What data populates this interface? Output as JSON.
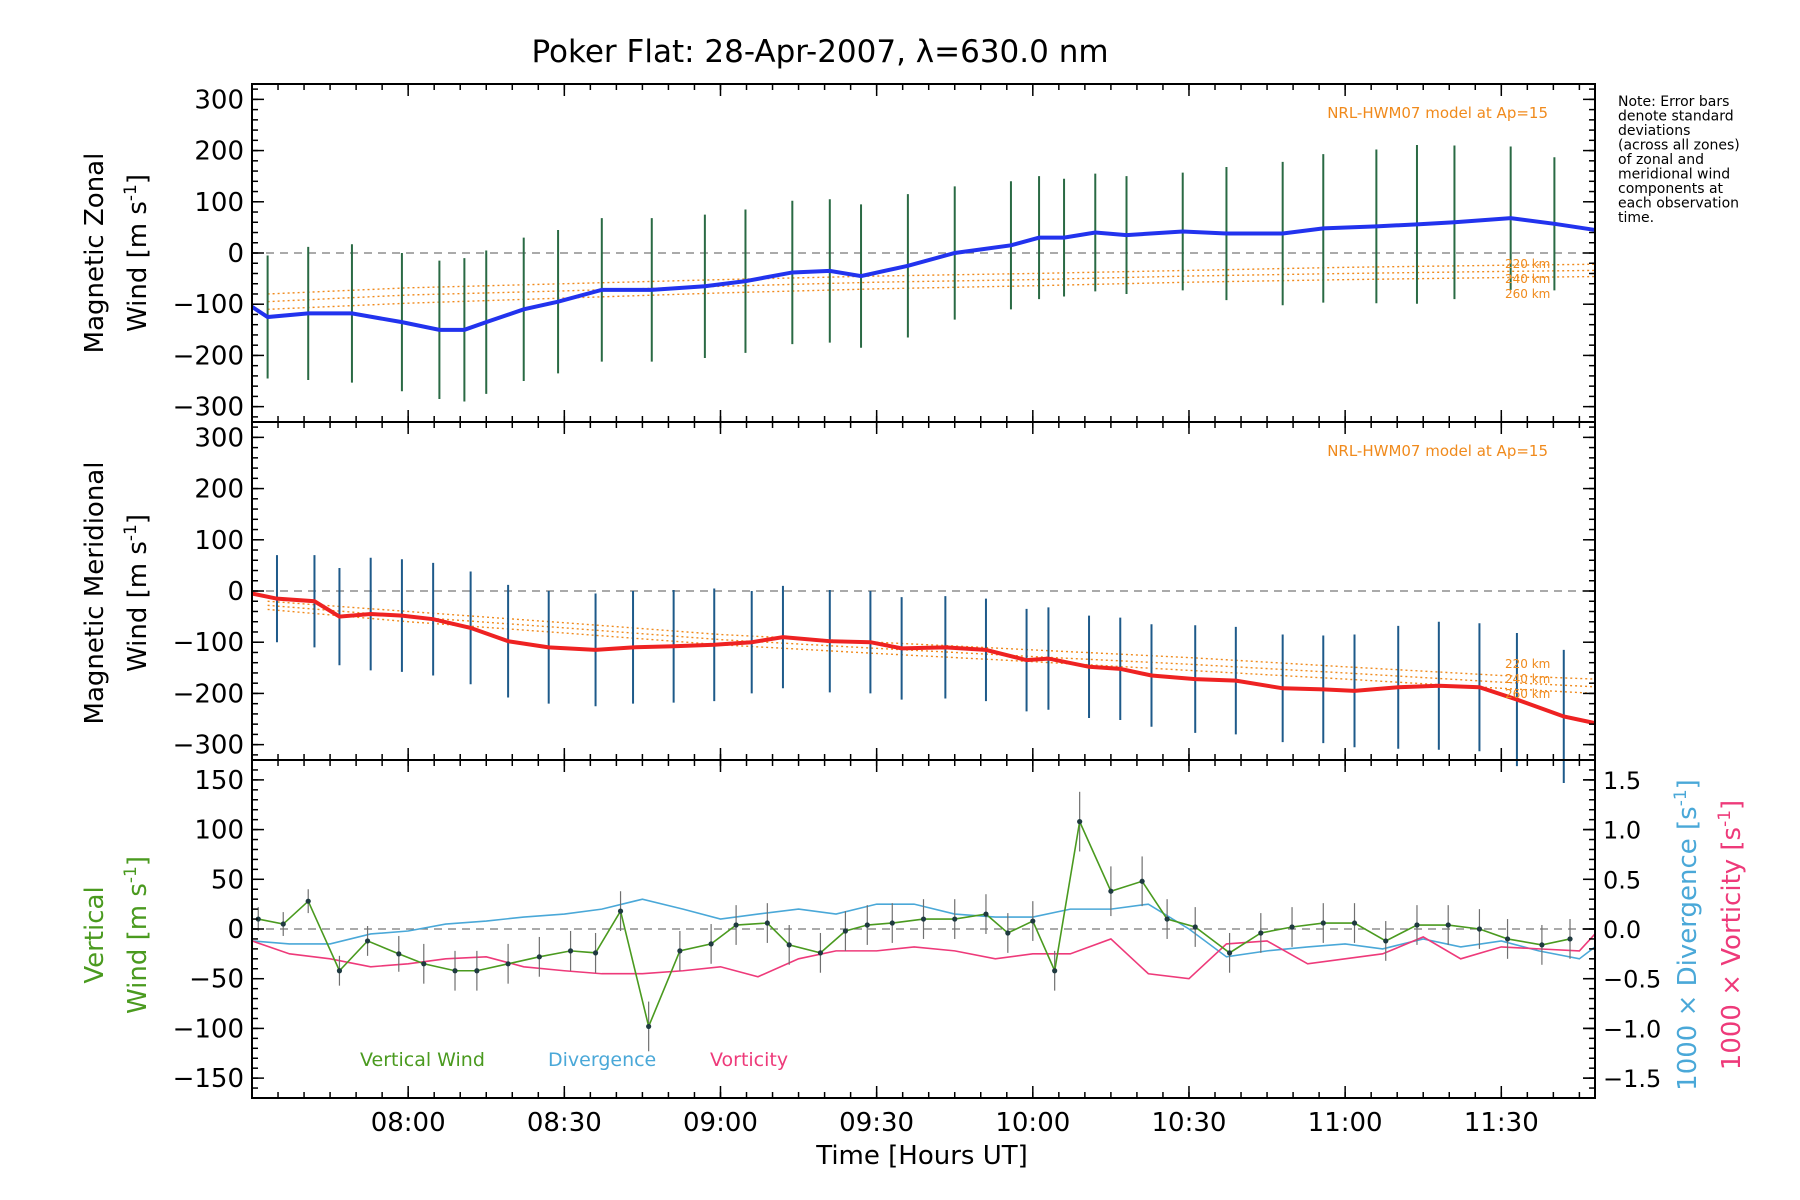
{
  "colors": {
    "zonal": "#2233ee",
    "meridional": "#ee2222",
    "vertical": "#4a9a1f",
    "divergence": "#4aa8d8",
    "vorticity": "#ee3a7a",
    "model": "#f08a1c",
    "errorbar_z": "#2a6a44",
    "errorbar_m": "#1e5a8a",
    "errorbar_v": "#707070"
  },
  "chart_data": [
    {
      "type": "line",
      "panel": "zonal",
      "title": "Poker Flat: 28-Apr-2007, λ=630.0 nm",
      "ylabel_line1": "Magnetic Zonal",
      "ylabel_line2": "Wind [m s",
      "ylabel_exp": "-1",
      "ylabel_close": "]",
      "ylim": [
        -330,
        330
      ],
      "yticks": [
        -300,
        -200,
        -100,
        0,
        100,
        200,
        300
      ],
      "ytick_labels": [
        "−300",
        "−200",
        "−100",
        "0",
        "100",
        "200",
        "300"
      ],
      "xlim": [
        7.5,
        11.8
      ],
      "model_label": "NRL-HWM07 model at Ap=15",
      "altitudes": [
        "220 km",
        "240 km",
        "260 km"
      ],
      "series": [
        {
          "name": "Zonal wind",
          "x": [
            7.5,
            7.55,
            7.68,
            7.82,
            7.98,
            8.1,
            8.18,
            8.25,
            8.37,
            8.48,
            8.62,
            8.78,
            8.95,
            9.08,
            9.23,
            9.35,
            9.45,
            9.6,
            9.75,
            9.93,
            10.02,
            10.1,
            10.2,
            10.3,
            10.48,
            10.62,
            10.8,
            10.93,
            11.1,
            11.23,
            11.35,
            11.53,
            11.67,
            11.8
          ],
          "values": [
            -105,
            -125,
            -118,
            -118,
            -135,
            -150,
            -150,
            -135,
            -110,
            -95,
            -72,
            -72,
            -65,
            -55,
            -38,
            -35,
            -45,
            -25,
            0,
            15,
            30,
            30,
            40,
            35,
            42,
            38,
            38,
            48,
            52,
            56,
            60,
            68,
            57,
            45
          ],
          "error": [
            95,
            120,
            130,
            135,
            135,
            135,
            140,
            140,
            140,
            140,
            140,
            140,
            140,
            140,
            140,
            140,
            140,
            140,
            130,
            125,
            120,
            115,
            115,
            115,
            115,
            130,
            140,
            145,
            150,
            155,
            150,
            140,
            130,
            125
          ]
        },
        {
          "name": "Model 220 km",
          "x": [
            7.55,
            8.0,
            8.5,
            9.0,
            9.5,
            10.0,
            10.5,
            11.0,
            11.5,
            11.8
          ],
          "values": [
            -80,
            -68,
            -60,
            -52,
            -45,
            -40,
            -34,
            -28,
            -24,
            -22
          ]
        },
        {
          "name": "Model 240 km",
          "x": [
            7.55,
            8.0,
            8.5,
            9.0,
            9.5,
            10.0,
            10.5,
            11.0,
            11.5,
            11.8
          ],
          "values": [
            -95,
            -82,
            -74,
            -65,
            -57,
            -52,
            -45,
            -40,
            -36,
            -34
          ]
        },
        {
          "name": "Model 260 km",
          "x": [
            7.55,
            8.0,
            8.5,
            9.0,
            9.5,
            10.0,
            10.5,
            11.0,
            11.5,
            11.8
          ],
          "values": [
            -110,
            -98,
            -88,
            -78,
            -70,
            -64,
            -57,
            -52,
            -48,
            -46
          ]
        }
      ]
    },
    {
      "type": "line",
      "panel": "meridional",
      "ylabel_line1": "Magnetic Meridional",
      "ylabel_line2": "Wind [m s",
      "ylabel_exp": "-1",
      "ylabel_close": "]",
      "ylim": [
        -330,
        330
      ],
      "yticks": [
        -300,
        -200,
        -100,
        0,
        100,
        200,
        300
      ],
      "ytick_labels": [
        "−300",
        "−200",
        "−100",
        "0",
        "100",
        "200",
        "300"
      ],
      "xlim": [
        7.5,
        11.8
      ],
      "model_label": "NRL-HWM07 model at Ap=15",
      "altitudes": [
        "220 km",
        "240 km",
        "260 km"
      ],
      "series": [
        {
          "name": "Meridional wind",
          "x": [
            7.5,
            7.58,
            7.7,
            7.78,
            7.88,
            7.98,
            8.08,
            8.2,
            8.32,
            8.45,
            8.6,
            8.72,
            8.85,
            8.98,
            9.1,
            9.2,
            9.35,
            9.48,
            9.58,
            9.72,
            9.85,
            9.98,
            10.05,
            10.18,
            10.28,
            10.38,
            10.52,
            10.65,
            10.8,
            10.93,
            11.03,
            11.17,
            11.3,
            11.43,
            11.55,
            11.7,
            11.8
          ],
          "values": [
            -5,
            -15,
            -20,
            -50,
            -45,
            -48,
            -55,
            -72,
            -98,
            -110,
            -115,
            -110,
            -108,
            -105,
            -100,
            -90,
            -98,
            -100,
            -112,
            -110,
            -115,
            -135,
            -132,
            -148,
            -152,
            -165,
            -172,
            -175,
            -190,
            -192,
            -195,
            -188,
            -185,
            -188,
            -212,
            -245,
            -258
          ],
          "error": [
            70,
            85,
            90,
            95,
            110,
            110,
            110,
            110,
            110,
            110,
            110,
            110,
            110,
            110,
            100,
            100,
            100,
            100,
            100,
            100,
            100,
            100,
            100,
            100,
            100,
            100,
            105,
            105,
            105,
            105,
            110,
            120,
            125,
            125,
            130,
            130,
            125
          ]
        },
        {
          "name": "Model 220 km",
          "x": [
            7.55,
            8.0,
            8.5,
            9.0,
            9.5,
            10.0,
            10.5,
            11.0,
            11.5,
            11.8
          ],
          "values": [
            -20,
            -40,
            -62,
            -85,
            -100,
            -115,
            -130,
            -148,
            -165,
            -172
          ]
        },
        {
          "name": "Model 240 km",
          "x": [
            7.55,
            8.0,
            8.5,
            9.0,
            9.5,
            10.0,
            10.5,
            11.0,
            11.5,
            11.8
          ],
          "values": [
            -28,
            -50,
            -72,
            -95,
            -112,
            -128,
            -143,
            -160,
            -178,
            -187
          ]
        },
        {
          "name": "Model 260 km",
          "x": [
            7.55,
            8.0,
            8.5,
            9.0,
            9.5,
            10.0,
            10.5,
            11.0,
            11.5,
            11.8
          ],
          "values": [
            -36,
            -60,
            -82,
            -105,
            -122,
            -138,
            -155,
            -172,
            -190,
            -200
          ]
        }
      ]
    },
    {
      "type": "line",
      "panel": "vertical",
      "ylabel_line1": "Vertical",
      "ylabel_line2": "Wind [m s",
      "ylabel_exp": "-1",
      "ylabel_close": "]",
      "ylim": [
        -170,
        170
      ],
      "yticks": [
        -150,
        -100,
        -50,
        0,
        50,
        100,
        150
      ],
      "ytick_labels": [
        "−150",
        "−100",
        "−50",
        "0",
        "50",
        "100",
        "150"
      ],
      "y2lim": [
        -1.7,
        1.7
      ],
      "y2ticks": [
        -1.5,
        -1.0,
        -0.5,
        0.0,
        0.5,
        1.0,
        1.5
      ],
      "y2tick_labels": [
        "−1.5",
        "−1.0",
        "−0.5",
        "0.0",
        "0.5",
        "1.0",
        "1.5"
      ],
      "y2label_div": "1000 × Divergence [s",
      "y2label_vor": "1000 × Vorticity [s",
      "y2label_exp": "-1",
      "y2label_close": "]",
      "xlim": [
        7.5,
        11.8
      ],
      "xticks": [
        8.0,
        8.5,
        9.0,
        9.5,
        10.0,
        10.5,
        11.0,
        11.5
      ],
      "xtick_labels": [
        "08:00",
        "08:30",
        "09:00",
        "09:30",
        "10:00",
        "10:30",
        "11:00",
        "11:30"
      ],
      "xlabel": "Time [Hours UT]",
      "legend": [
        "Vertical Wind",
        "Divergence",
        "Vorticity"
      ],
      "series": [
        {
          "name": "Vertical Wind",
          "x": [
            7.52,
            7.6,
            7.68,
            7.78,
            7.87,
            7.97,
            8.05,
            8.15,
            8.22,
            8.32,
            8.42,
            8.52,
            8.6,
            8.68,
            8.77,
            8.87,
            8.97,
            9.05,
            9.15,
            9.22,
            9.32,
            9.4,
            9.47,
            9.55,
            9.65,
            9.75,
            9.85,
            9.92,
            10.0,
            10.07,
            10.15,
            10.25,
            10.35,
            10.43,
            10.52,
            10.63,
            10.73,
            10.83,
            10.93,
            11.03,
            11.13,
            11.23,
            11.33,
            11.43,
            11.52,
            11.63,
            11.72
          ],
          "values": [
            10,
            5,
            28,
            -42,
            -12,
            -25,
            -35,
            -42,
            -42,
            -35,
            -28,
            -22,
            -24,
            18,
            -98,
            -22,
            -15,
            4,
            6,
            -16,
            -24,
            -2,
            4,
            6,
            10,
            10,
            15,
            -4,
            8,
            -42,
            108,
            38,
            48,
            10,
            2,
            -24,
            -4,
            2,
            6,
            6,
            -12,
            4,
            4,
            0,
            -10,
            -16,
            -10
          ],
          "error": [
            12,
            12,
            12,
            15,
            15,
            18,
            20,
            20,
            20,
            20,
            20,
            20,
            20,
            20,
            25,
            20,
            20,
            20,
            20,
            20,
            20,
            20,
            20,
            20,
            20,
            20,
            20,
            20,
            20,
            20,
            30,
            25,
            25,
            20,
            20,
            20,
            20,
            20,
            20,
            20,
            20,
            20,
            20,
            20,
            20,
            20,
            20
          ]
        },
        {
          "name": "Divergence",
          "x": [
            7.5,
            7.62,
            7.75,
            7.88,
            8.0,
            8.12,
            8.25,
            8.37,
            8.5,
            8.62,
            8.75,
            8.88,
            9.0,
            9.12,
            9.25,
            9.37,
            9.5,
            9.62,
            9.75,
            9.88,
            10.0,
            10.12,
            10.25,
            10.37,
            10.5,
            10.62,
            10.75,
            10.88,
            11.0,
            11.12,
            11.25,
            11.37,
            11.5,
            11.62,
            11.75,
            11.8
          ],
          "values": [
            -0.12,
            -0.15,
            -0.15,
            -0.05,
            -0.02,
            0.05,
            0.08,
            0.12,
            0.15,
            0.2,
            0.3,
            0.2,
            0.1,
            0.15,
            0.2,
            0.15,
            0.25,
            0.25,
            0.15,
            0.12,
            0.12,
            0.2,
            0.2,
            0.25,
            0.0,
            -0.28,
            -0.22,
            -0.18,
            -0.15,
            -0.2,
            -0.1,
            -0.18,
            -0.12,
            -0.22,
            -0.3,
            -0.18
          ]
        },
        {
          "name": "Vorticity",
          "x": [
            7.5,
            7.62,
            7.75,
            7.88,
            8.0,
            8.12,
            8.25,
            8.37,
            8.5,
            8.62,
            8.75,
            8.88,
            9.0,
            9.12,
            9.25,
            9.37,
            9.5,
            9.62,
            9.75,
            9.88,
            10.0,
            10.12,
            10.25,
            10.37,
            10.5,
            10.62,
            10.75,
            10.88,
            11.0,
            11.12,
            11.25,
            11.37,
            11.5,
            11.62,
            11.75,
            11.8
          ],
          "values": [
            -0.12,
            -0.25,
            -0.3,
            -0.38,
            -0.35,
            -0.3,
            -0.28,
            -0.38,
            -0.42,
            -0.45,
            -0.45,
            -0.42,
            -0.38,
            -0.48,
            -0.3,
            -0.22,
            -0.22,
            -0.18,
            -0.22,
            -0.3,
            -0.25,
            -0.25,
            -0.1,
            -0.45,
            -0.5,
            -0.15,
            -0.12,
            -0.35,
            -0.3,
            -0.25,
            -0.08,
            -0.3,
            -0.18,
            -0.2,
            -0.22,
            -0.05
          ]
        }
      ]
    }
  ],
  "note_lines": [
    "Note: Error bars",
    "denote standard",
    "deviations",
    "(across all zones)",
    "of zonal and",
    "meridional wind",
    "components at",
    "each observation",
    "time."
  ]
}
